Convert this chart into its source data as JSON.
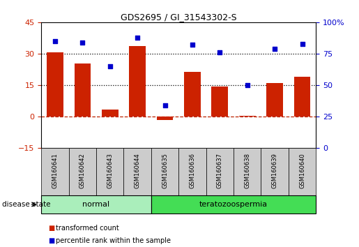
{
  "title": "GDS2695 / GI_31543302-S",
  "samples": [
    "GSM160641",
    "GSM160642",
    "GSM160643",
    "GSM160644",
    "GSM160635",
    "GSM160636",
    "GSM160637",
    "GSM160638",
    "GSM160639",
    "GSM160640"
  ],
  "transformed_count": [
    30.5,
    25.5,
    3.5,
    33.5,
    -1.5,
    21.5,
    14.5,
    0.5,
    16.0,
    19.0
  ],
  "percentile_rank": [
    85,
    84,
    65,
    88,
    34,
    82,
    76,
    50,
    79,
    83
  ],
  "groups": [
    {
      "label": "normal",
      "start": 0,
      "end": 4,
      "color": "#90EE90"
    },
    {
      "label": "teratozoospermia",
      "start": 4,
      "end": 10,
      "color": "#44CC44"
    }
  ],
  "disease_state_label": "disease state",
  "left_ylim": [
    -15,
    45
  ],
  "right_ylim": [
    0,
    100
  ],
  "left_yticks": [
    -15,
    0,
    15,
    30,
    45
  ],
  "right_yticks": [
    0,
    25,
    50,
    75,
    100
  ],
  "right_yticklabels": [
    "0",
    "25",
    "50",
    "75",
    "100%"
  ],
  "hlines": [
    30,
    15
  ],
  "bar_color": "#CC2200",
  "scatter_color": "#0000CC",
  "zero_line_color": "#BB2200",
  "background_color": "#FFFFFF",
  "legend_bar_label": "transformed count",
  "legend_scatter_label": "percentile rank within the sample",
  "sample_box_color": "#CCCCCC",
  "normal_group_color": "#AAEEBB",
  "terato_group_color": "#44DD55"
}
